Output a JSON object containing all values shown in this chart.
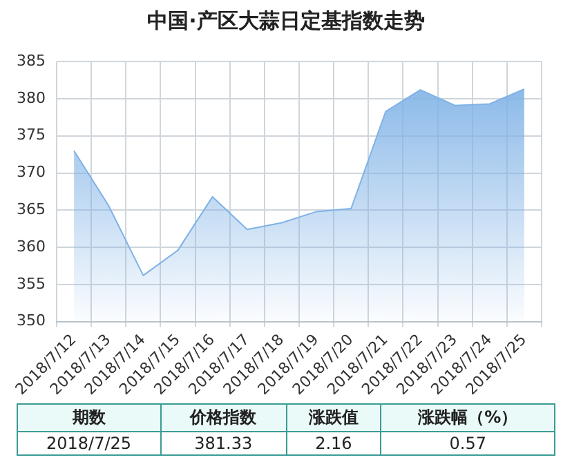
{
  "chart_data": {
    "type": "area",
    "title": "中国·产区大蒜日定基指数走势",
    "categories": [
      "2018/7/12",
      "2018/7/13",
      "2018/7/14",
      "2018/7/15",
      "2018/7/16",
      "2018/7/17",
      "2018/7/18",
      "2018/7/19",
      "2018/7/20",
      "2018/7/21",
      "2018/7/22",
      "2018/7/23",
      "2018/7/24",
      "2018/7/25"
    ],
    "series": [
      {
        "color": "#7fb2e6",
        "values": [
          373.0,
          365.6,
          356.2,
          359.6,
          366.8,
          362.4,
          363.3,
          364.8,
          365.2,
          378.3,
          381.2,
          379.1,
          379.3,
          381.3
        ]
      }
    ],
    "ylim": [
      350,
      385
    ],
    "yticks": [
      350,
      355,
      360,
      365,
      370,
      375,
      380,
      385
    ],
    "grid": true,
    "legend": false,
    "annotations": [
      "期数",
      "价格指数",
      "涨跌值",
      "涨跌幅（%）",
      "2018/7/25",
      "381.33",
      "2.16",
      "0.57"
    ]
  }
}
